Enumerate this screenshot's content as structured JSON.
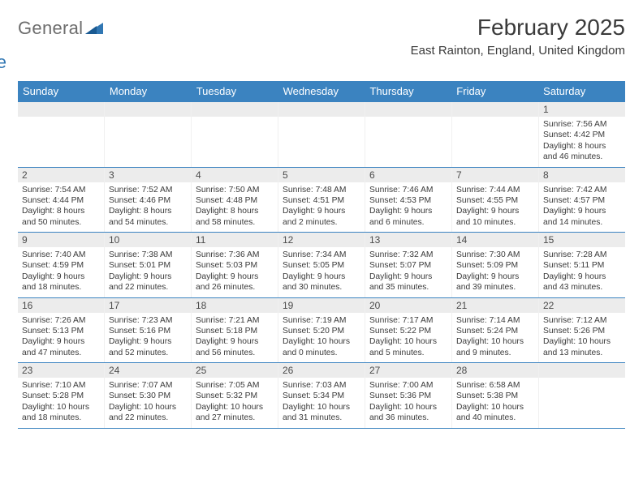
{
  "brand": {
    "word1": "General",
    "word2": "Blue"
  },
  "title": "February 2025",
  "location": "East Rainton, England, United Kingdom",
  "colors": {
    "header_bg": "#3b83c0",
    "header_text": "#ffffff",
    "daynum_bg": "#ececec",
    "rule": "#3b83c0",
    "text": "#3a3a3a",
    "logo_gray": "#6d6d6d",
    "logo_blue": "#3177b3"
  },
  "dayHeaders": [
    "Sunday",
    "Monday",
    "Tuesday",
    "Wednesday",
    "Thursday",
    "Friday",
    "Saturday"
  ],
  "weeks": [
    [
      {
        "n": "",
        "sunrise": "",
        "sunset": "",
        "daylight": ""
      },
      {
        "n": "",
        "sunrise": "",
        "sunset": "",
        "daylight": ""
      },
      {
        "n": "",
        "sunrise": "",
        "sunset": "",
        "daylight": ""
      },
      {
        "n": "",
        "sunrise": "",
        "sunset": "",
        "daylight": ""
      },
      {
        "n": "",
        "sunrise": "",
        "sunset": "",
        "daylight": ""
      },
      {
        "n": "",
        "sunrise": "",
        "sunset": "",
        "daylight": ""
      },
      {
        "n": "1",
        "sunrise": "Sunrise: 7:56 AM",
        "sunset": "Sunset: 4:42 PM",
        "daylight": "Daylight: 8 hours and 46 minutes."
      }
    ],
    [
      {
        "n": "2",
        "sunrise": "Sunrise: 7:54 AM",
        "sunset": "Sunset: 4:44 PM",
        "daylight": "Daylight: 8 hours and 50 minutes."
      },
      {
        "n": "3",
        "sunrise": "Sunrise: 7:52 AM",
        "sunset": "Sunset: 4:46 PM",
        "daylight": "Daylight: 8 hours and 54 minutes."
      },
      {
        "n": "4",
        "sunrise": "Sunrise: 7:50 AM",
        "sunset": "Sunset: 4:48 PM",
        "daylight": "Daylight: 8 hours and 58 minutes."
      },
      {
        "n": "5",
        "sunrise": "Sunrise: 7:48 AM",
        "sunset": "Sunset: 4:51 PM",
        "daylight": "Daylight: 9 hours and 2 minutes."
      },
      {
        "n": "6",
        "sunrise": "Sunrise: 7:46 AM",
        "sunset": "Sunset: 4:53 PM",
        "daylight": "Daylight: 9 hours and 6 minutes."
      },
      {
        "n": "7",
        "sunrise": "Sunrise: 7:44 AM",
        "sunset": "Sunset: 4:55 PM",
        "daylight": "Daylight: 9 hours and 10 minutes."
      },
      {
        "n": "8",
        "sunrise": "Sunrise: 7:42 AM",
        "sunset": "Sunset: 4:57 PM",
        "daylight": "Daylight: 9 hours and 14 minutes."
      }
    ],
    [
      {
        "n": "9",
        "sunrise": "Sunrise: 7:40 AM",
        "sunset": "Sunset: 4:59 PM",
        "daylight": "Daylight: 9 hours and 18 minutes."
      },
      {
        "n": "10",
        "sunrise": "Sunrise: 7:38 AM",
        "sunset": "Sunset: 5:01 PM",
        "daylight": "Daylight: 9 hours and 22 minutes."
      },
      {
        "n": "11",
        "sunrise": "Sunrise: 7:36 AM",
        "sunset": "Sunset: 5:03 PM",
        "daylight": "Daylight: 9 hours and 26 minutes."
      },
      {
        "n": "12",
        "sunrise": "Sunrise: 7:34 AM",
        "sunset": "Sunset: 5:05 PM",
        "daylight": "Daylight: 9 hours and 30 minutes."
      },
      {
        "n": "13",
        "sunrise": "Sunrise: 7:32 AM",
        "sunset": "Sunset: 5:07 PM",
        "daylight": "Daylight: 9 hours and 35 minutes."
      },
      {
        "n": "14",
        "sunrise": "Sunrise: 7:30 AM",
        "sunset": "Sunset: 5:09 PM",
        "daylight": "Daylight: 9 hours and 39 minutes."
      },
      {
        "n": "15",
        "sunrise": "Sunrise: 7:28 AM",
        "sunset": "Sunset: 5:11 PM",
        "daylight": "Daylight: 9 hours and 43 minutes."
      }
    ],
    [
      {
        "n": "16",
        "sunrise": "Sunrise: 7:26 AM",
        "sunset": "Sunset: 5:13 PM",
        "daylight": "Daylight: 9 hours and 47 minutes."
      },
      {
        "n": "17",
        "sunrise": "Sunrise: 7:23 AM",
        "sunset": "Sunset: 5:16 PM",
        "daylight": "Daylight: 9 hours and 52 minutes."
      },
      {
        "n": "18",
        "sunrise": "Sunrise: 7:21 AM",
        "sunset": "Sunset: 5:18 PM",
        "daylight": "Daylight: 9 hours and 56 minutes."
      },
      {
        "n": "19",
        "sunrise": "Sunrise: 7:19 AM",
        "sunset": "Sunset: 5:20 PM",
        "daylight": "Daylight: 10 hours and 0 minutes."
      },
      {
        "n": "20",
        "sunrise": "Sunrise: 7:17 AM",
        "sunset": "Sunset: 5:22 PM",
        "daylight": "Daylight: 10 hours and 5 minutes."
      },
      {
        "n": "21",
        "sunrise": "Sunrise: 7:14 AM",
        "sunset": "Sunset: 5:24 PM",
        "daylight": "Daylight: 10 hours and 9 minutes."
      },
      {
        "n": "22",
        "sunrise": "Sunrise: 7:12 AM",
        "sunset": "Sunset: 5:26 PM",
        "daylight": "Daylight: 10 hours and 13 minutes."
      }
    ],
    [
      {
        "n": "23",
        "sunrise": "Sunrise: 7:10 AM",
        "sunset": "Sunset: 5:28 PM",
        "daylight": "Daylight: 10 hours and 18 minutes."
      },
      {
        "n": "24",
        "sunrise": "Sunrise: 7:07 AM",
        "sunset": "Sunset: 5:30 PM",
        "daylight": "Daylight: 10 hours and 22 minutes."
      },
      {
        "n": "25",
        "sunrise": "Sunrise: 7:05 AM",
        "sunset": "Sunset: 5:32 PM",
        "daylight": "Daylight: 10 hours and 27 minutes."
      },
      {
        "n": "26",
        "sunrise": "Sunrise: 7:03 AM",
        "sunset": "Sunset: 5:34 PM",
        "daylight": "Daylight: 10 hours and 31 minutes."
      },
      {
        "n": "27",
        "sunrise": "Sunrise: 7:00 AM",
        "sunset": "Sunset: 5:36 PM",
        "daylight": "Daylight: 10 hours and 36 minutes."
      },
      {
        "n": "28",
        "sunrise": "Sunrise: 6:58 AM",
        "sunset": "Sunset: 5:38 PM",
        "daylight": "Daylight: 10 hours and 40 minutes."
      },
      {
        "n": "",
        "sunrise": "",
        "sunset": "",
        "daylight": ""
      }
    ]
  ]
}
